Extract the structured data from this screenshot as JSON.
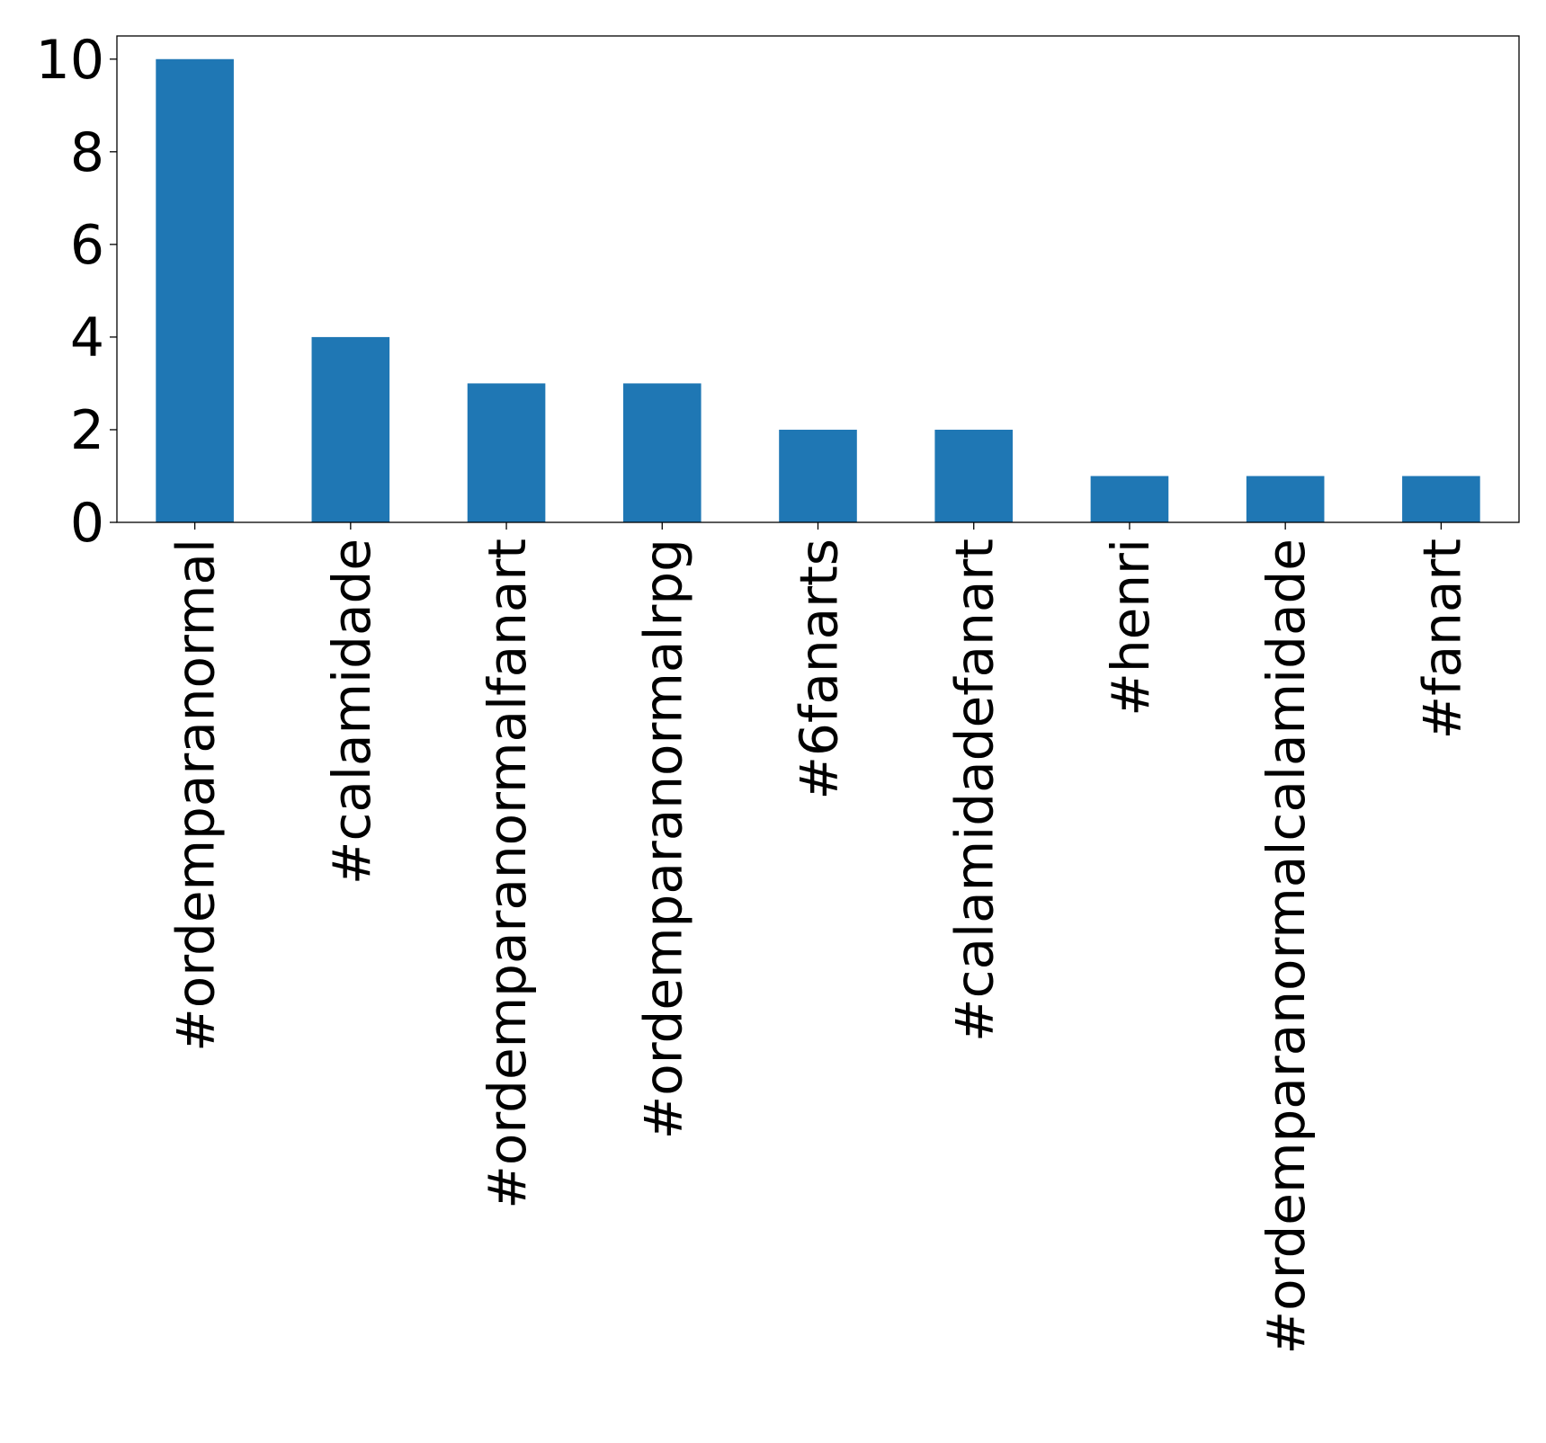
{
  "chart_data": {
    "type": "bar",
    "title": "",
    "xlabel": "",
    "ylabel": "",
    "categories": [
      "#ordemparanormal",
      "#calamidade",
      "#ordemparanormalfanart",
      "#ordemparanormalrpg",
      "#6fanarts",
      "#calamidadefanart",
      "#henri",
      "#ordemparanormalcalamidade",
      "#fanart"
    ],
    "values": [
      10,
      4,
      3,
      3,
      2,
      2,
      1,
      1,
      1
    ],
    "ylim": [
      0,
      10.5
    ],
    "yticks": [
      "0",
      "2",
      "4",
      "6",
      "8",
      "10"
    ],
    "bar_color": "#1f77b4",
    "grid": false,
    "legend": "none",
    "x_tick_rotation": "vertical"
  }
}
